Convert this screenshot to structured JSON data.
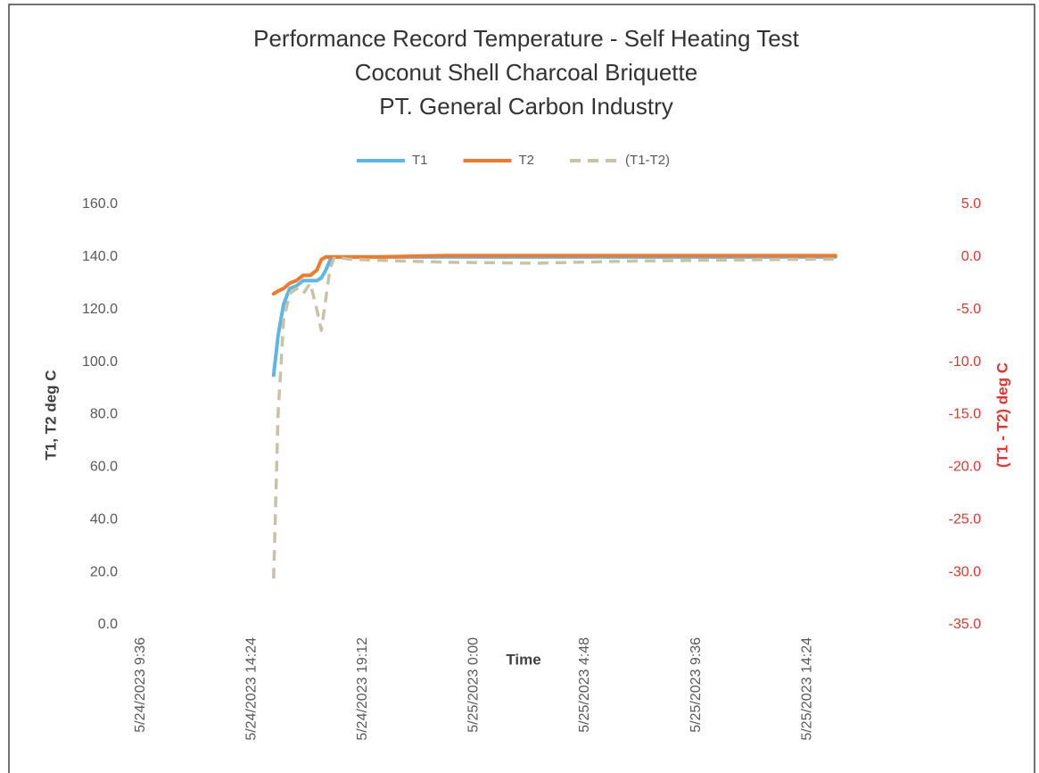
{
  "chart_data": {
    "type": "line",
    "title": [
      "Performance Record Temperature - Self Heating Test",
      "Coconut Shell Charcoal Briquette",
      "PT. General Carbon Industry"
    ],
    "x_label": "Time",
    "y_label": "T1, T2  deg C",
    "y2_label": "(T1 - T2) deg C",
    "x": [
      45070.639,
      45070.647,
      45070.657,
      45070.668,
      45070.68,
      45070.692,
      45070.705,
      45070.717,
      45070.725,
      45070.733,
      45070.741,
      45070.749,
      45070.773,
      45070.821,
      45070.949,
      45071.11,
      45071.271,
      45071.431,
      45071.651
    ],
    "series": [
      {
        "name": "T1",
        "color": "#5bb8e6",
        "dashed": false,
        "axis": "y",
        "values": [
          95,
          110,
          122,
          128,
          129,
          131,
          131,
          131,
          132,
          135,
          139,
          140,
          140,
          140,
          140,
          140,
          140,
          140,
          140
        ]
      },
      {
        "name": "T2",
        "color": "#f07a2a",
        "dashed": false,
        "axis": "y",
        "values": [
          126,
          127,
          128,
          130,
          131,
          133,
          133,
          135,
          139,
          140,
          140,
          140,
          140,
          140,
          140.5,
          140.5,
          140.5,
          140.5,
          140.5
        ]
      },
      {
        "name": "(T1-T2)",
        "color": "#c8c2a6",
        "dashed": true,
        "axis": "y2",
        "values": [
          -30.6,
          -15,
          -6,
          -3.5,
          -3,
          -3.5,
          -2.5,
          -5,
          -7,
          -4,
          -1,
          0,
          -0.2,
          -0.3,
          -0.5,
          -0.6,
          -0.4,
          -0.3,
          -0.2
        ]
      }
    ],
    "xlim": [
      45070.4,
      45071.82
    ],
    "xticks": [
      {
        "value": 45070.4,
        "label": "5/24/2023 9:36"
      },
      {
        "value": 45070.6,
        "label": "5/24/2023 14:24"
      },
      {
        "value": 45070.8,
        "label": "5/24/2023 19:12"
      },
      {
        "value": 45071.0,
        "label": "5/25/2023 0:00"
      },
      {
        "value": 45071.2,
        "label": "5/25/2023 4:48"
      },
      {
        "value": 45071.4,
        "label": "5/25/2023 9:36"
      },
      {
        "value": 45071.6,
        "label": "5/25/2023 14:24"
      }
    ],
    "ylim": [
      0,
      160
    ],
    "yticks": [
      {
        "value": 0,
        "label": "0.0"
      },
      {
        "value": 20,
        "label": "20.0"
      },
      {
        "value": 40,
        "label": "40.0"
      },
      {
        "value": 60,
        "label": "60.0"
      },
      {
        "value": 80,
        "label": "80.0"
      },
      {
        "value": 100,
        "label": "100.0"
      },
      {
        "value": 120,
        "label": "120.0"
      },
      {
        "value": 140,
        "label": "140.0"
      },
      {
        "value": 160,
        "label": "160.0"
      }
    ],
    "y2lim": [
      -35,
      5
    ],
    "y2ticks": [
      {
        "value": 5,
        "label": "5.0"
      },
      {
        "value": 0,
        "label": "0.0"
      },
      {
        "value": -5,
        "label": "-5.0"
      },
      {
        "value": -10,
        "label": "-10.0"
      },
      {
        "value": -15,
        "label": "-15.0"
      },
      {
        "value": -20,
        "label": "-20.0"
      },
      {
        "value": -25,
        "label": "-25.0"
      },
      {
        "value": -30,
        "label": "-30.0"
      },
      {
        "value": -35,
        "label": "-35.0"
      }
    ],
    "grid": false,
    "legend": "top"
  }
}
